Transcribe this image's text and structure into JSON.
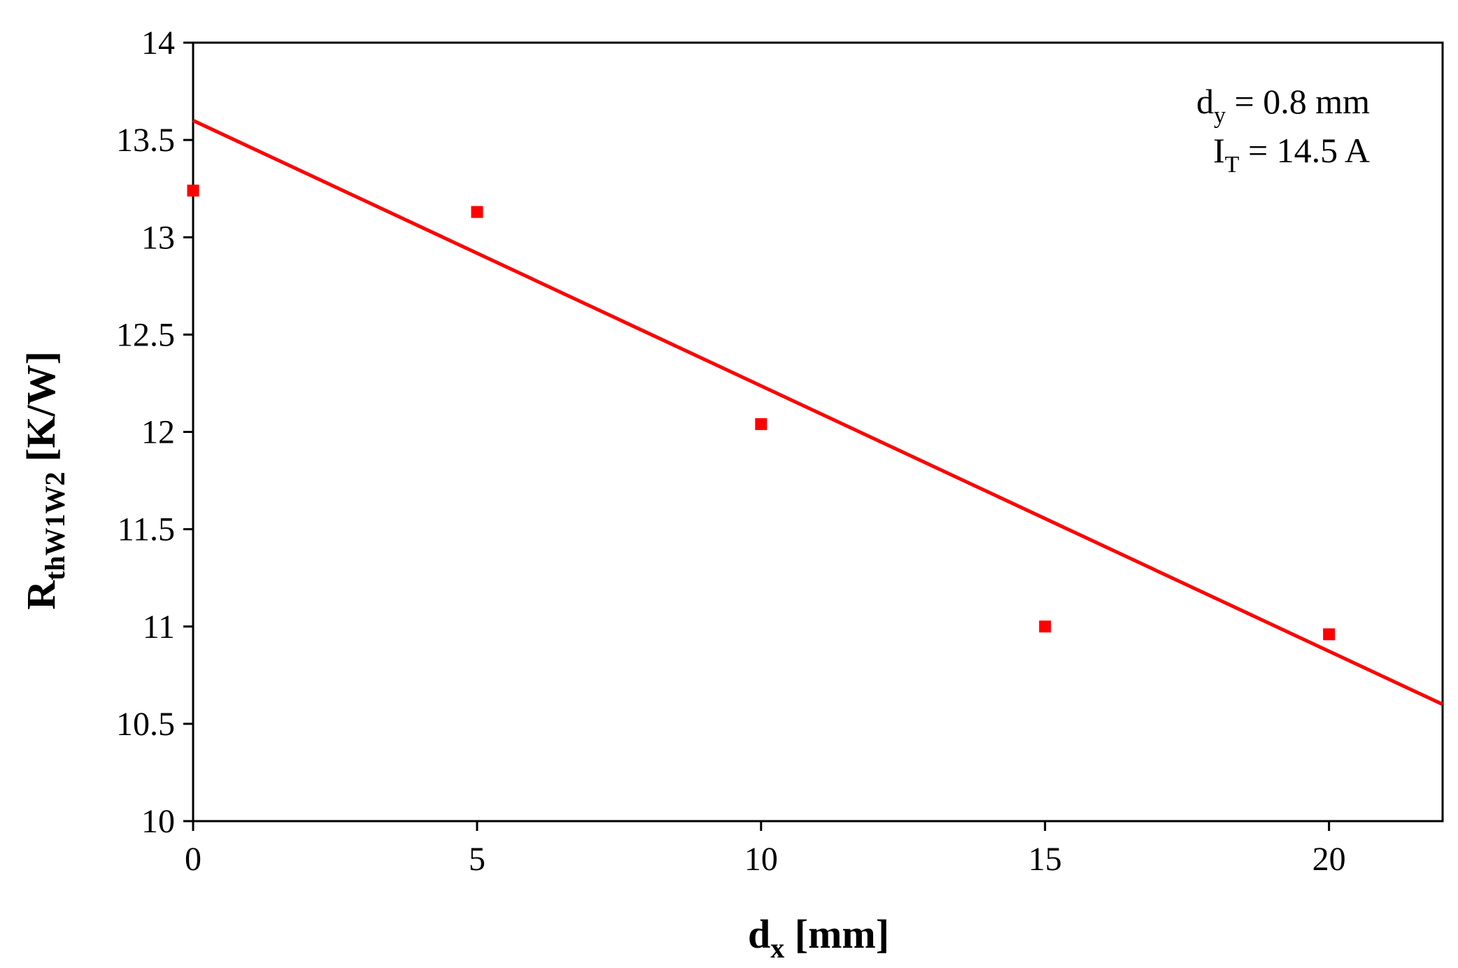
{
  "chart_data": {
    "type": "scatter",
    "title": "",
    "xlabel": {
      "main": "d",
      "sub": "x",
      "rest": " [mm]"
    },
    "ylabel": {
      "main": "R",
      "sub": "thW1W2",
      "rest": " [K/W]"
    },
    "xlim": [
      0,
      22
    ],
    "ylim": [
      10,
      14
    ],
    "xticks": [
      0,
      5,
      10,
      15,
      20
    ],
    "xtick_labels": [
      "0",
      "5",
      "10",
      "15",
      "20"
    ],
    "yticks": [
      10,
      10.5,
      11,
      11.5,
      12,
      12.5,
      13,
      13.5,
      14
    ],
    "ytick_labels": [
      "10",
      "10.5",
      "11",
      "11.5",
      "12",
      "12.5",
      "13",
      "13.5",
      "14"
    ],
    "grid": false,
    "series": [
      {
        "marker": "square",
        "color": "#ff0000",
        "x": [
          0,
          5,
          10,
          15,
          20
        ],
        "y": [
          13.24,
          13.13,
          12.04,
          11.0,
          10.96
        ]
      }
    ],
    "trendline": {
      "type": "linear",
      "color": "#ff0000",
      "x": [
        0,
        22
      ],
      "y": [
        13.6,
        10.6
      ]
    },
    "annotations": [
      {
        "main": "d",
        "sub": "y",
        "rest": " = 0.8 mm"
      },
      {
        "main": "I",
        "sub": "T",
        "rest": " = 14.5 A"
      }
    ]
  }
}
